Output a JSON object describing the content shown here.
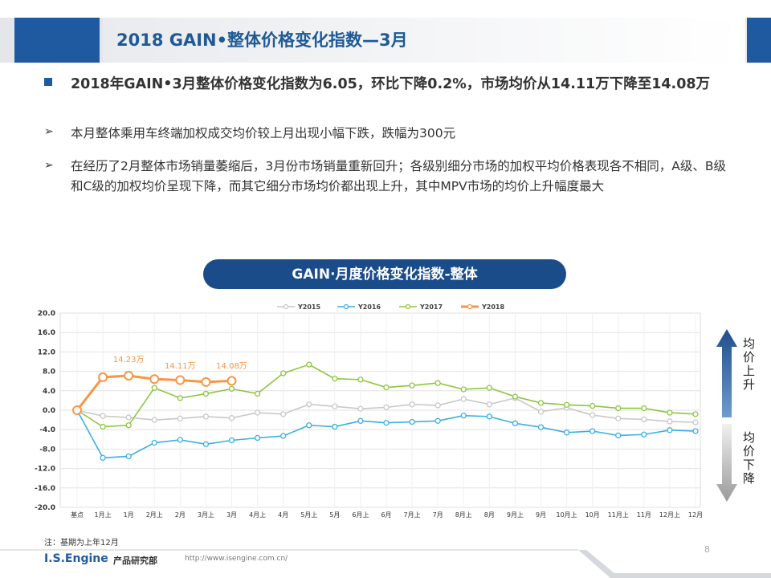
{
  "header": {
    "title": "2018 GAIN•整体价格变化指数—3月"
  },
  "bullets": [
    {
      "text": "2018年GAIN•3月整体价格变化指数为6.05，环比下降0.2%，市场均价从14.11万下降至14.08万"
    },
    {
      "text": "本月整体乘用车终端加权成交均价较上月出现小幅下跌，跌幅为300元"
    },
    {
      "text": "在经历了2月整体市场销量萎缩后，3月份市场销量重新回升；各级别细分市场的加权平均价格表现各不相同，A级、B级和C级的加权均价呈现下降，而其它细分市场均价都出现上升，其中MPV市场的均价上升幅度最大"
    }
  ],
  "chart_data": {
    "type": "line",
    "title": "GAIN·月度价格变化指数-整体",
    "categories": [
      "基点",
      "1月上",
      "1月",
      "2月上",
      "2月",
      "3月上",
      "3月",
      "4月上",
      "4月",
      "5月上",
      "5月",
      "6月上",
      "6月",
      "7月上",
      "7月",
      "8月上",
      "8月",
      "9月上",
      "9月",
      "10月上",
      "10月",
      "11月上",
      "11月",
      "12月上",
      "12月"
    ],
    "series": [
      {
        "name": "Y2015",
        "color": "#c8c8c8",
        "values": [
          0,
          -1.2,
          -1.5,
          -2,
          -1.7,
          -1.3,
          -1.6,
          -0.5,
          -0.8,
          1.2,
          0.8,
          0.3,
          0.6,
          1.2,
          1,
          2.3,
          1.2,
          2.5,
          -0.3,
          0.5,
          -1,
          -1.7,
          -1.9,
          -2.3,
          -2.5
        ]
      },
      {
        "name": "Y2016",
        "color": "#3ab0e0",
        "values": [
          0,
          -9.8,
          -9.5,
          -6.7,
          -6.1,
          -7,
          -6.2,
          -5.7,
          -5.3,
          -3.1,
          -3.4,
          -2.2,
          -2.6,
          -2.4,
          -2.2,
          -1.1,
          -1.3,
          -2.7,
          -3.5,
          -4.6,
          -4.3,
          -5.2,
          -5,
          -4.1,
          -4.3
        ]
      },
      {
        "name": "Y2017",
        "color": "#8dc63f",
        "values": [
          0,
          -3.4,
          -3.1,
          4.6,
          2.5,
          3.4,
          4.4,
          3.4,
          7.6,
          9.4,
          6.5,
          6.3,
          4.7,
          5.1,
          5.6,
          4.3,
          4.6,
          2.8,
          1.5,
          1.1,
          0.9,
          0.4,
          0.4,
          -0.5,
          -0.8
        ]
      },
      {
        "name": "Y2018",
        "color": "#f79646",
        "values": [
          0,
          6.8,
          7.1,
          6.4,
          6.2,
          5.8,
          6.05,
          null,
          null,
          null,
          null,
          null,
          null,
          null,
          null,
          null,
          null,
          null,
          null,
          null,
          null,
          null,
          null,
          null,
          null
        ]
      }
    ],
    "annotations": [
      {
        "text": "14.23万",
        "category": "1月"
      },
      {
        "text": "14.11万",
        "category": "2月"
      },
      {
        "text": "14.08万",
        "category": "3月"
      }
    ],
    "ylim": [
      -20,
      20
    ],
    "yticks": [
      {
        "value": -20,
        "label": "-20.0"
      },
      {
        "value": -16,
        "label": "-16.0"
      },
      {
        "value": -12,
        "label": "-12.0"
      },
      {
        "value": -8,
        "label": "-8.0"
      },
      {
        "value": -4,
        "label": "-4.0"
      },
      {
        "value": 0,
        "label": "0.0"
      },
      {
        "value": 4,
        "label": "4.0"
      },
      {
        "value": 8,
        "label": "8.0"
      },
      {
        "value": 12,
        "label": "12.0"
      },
      {
        "value": 16,
        "label": "16.0"
      },
      {
        "value": 20,
        "label": "20.0"
      }
    ],
    "grid": true,
    "side_labels": {
      "up": "均价上升",
      "down": "均价下降"
    },
    "note": "注：基期为上年12月"
  },
  "footer": {
    "brand": "I.S.Engine",
    "dept": "产品研究部",
    "url": "http://www.isengine.com.cn/",
    "page": "8"
  }
}
